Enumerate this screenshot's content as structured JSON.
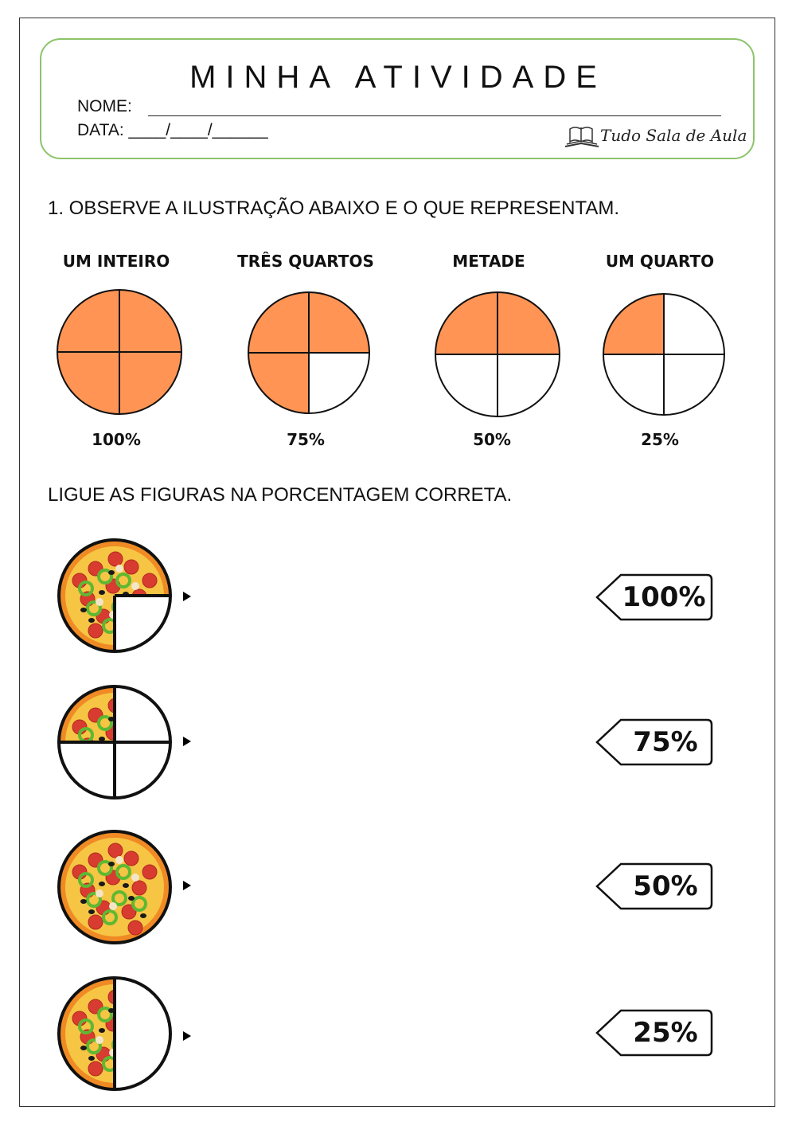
{
  "header": {
    "title": "MINHA ATIVIDADE",
    "name_label": "NOME:",
    "date_label": "DATA: ____/____/______",
    "logo_text": "Tudo Sala de Aula"
  },
  "question1": {
    "text": "1. OBSERVE A ILUSTRAÇÃO ABAIXO E O QUE REPRESENTAM.",
    "fractions": [
      {
        "label": "UM INTEIRO",
        "percent": "100%",
        "filled_quarters": 4
      },
      {
        "label": "TRÊS QUARTOS",
        "percent": "75%",
        "filled_quarters": 3
      },
      {
        "label": "METADE",
        "percent": "50%",
        "filled_quarters": 2
      },
      {
        "label": "UM QUARTO",
        "percent": "25%",
        "filled_quarters": 1
      }
    ],
    "fill_color": "#ff9455"
  },
  "question2": {
    "text": "LIGUE AS FIGURAS NA PORCENTAGEM CORRETA.",
    "pizzas": [
      {
        "shown_fraction": 0.75
      },
      {
        "shown_fraction": 0.25
      },
      {
        "shown_fraction": 1.0
      },
      {
        "shown_fraction": 0.5
      }
    ],
    "tags": [
      "100%",
      "75%",
      "50%",
      "25%"
    ]
  }
}
